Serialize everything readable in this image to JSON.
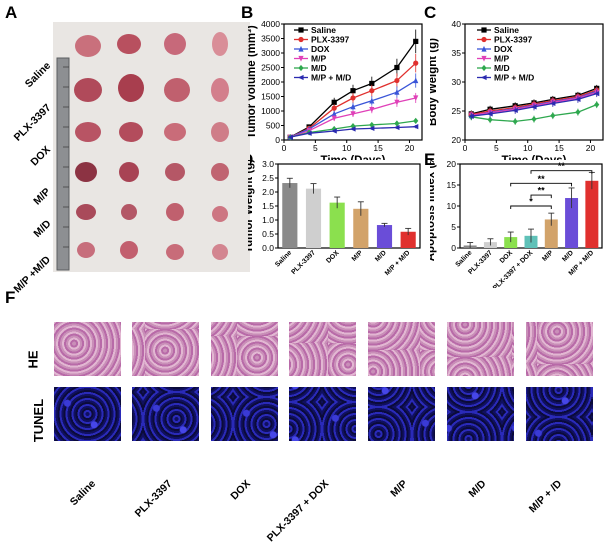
{
  "panels": {
    "A": "A",
    "B": "B",
    "C": "C",
    "D": "D",
    "E": "E",
    "F": "F"
  },
  "panelA": {
    "rows": [
      "Saline",
      "PLX-3397",
      "DOX",
      "M/P",
      "M/D",
      "M/P +M/D"
    ]
  },
  "panelF": {
    "rows": [
      "HE",
      "TUNEL"
    ],
    "columns": [
      "Saline",
      "PLX-3397",
      "DOX",
      "PLX-3397 + DOX",
      "M/P",
      "M/D",
      "M/P + /D"
    ]
  },
  "colors": {
    "Saline": "#000000",
    "PLX-3397": "#e0302e",
    "DOX": "#3a55d8",
    "M/P": "#e040b8",
    "M/D": "#2fa84f",
    "M/P + M/D": "#2b2bb0"
  },
  "chart_data": [
    {
      "id": "B",
      "type": "line",
      "title": "",
      "xlabel": "Time (Days)",
      "ylabel": "Tumor volume (mm³)",
      "xlim": [
        0,
        22
      ],
      "ylim": [
        0,
        4000
      ],
      "xticks": [
        0,
        5,
        10,
        15,
        20
      ],
      "yticks": [
        0,
        500,
        1000,
        1500,
        2000,
        2500,
        3000,
        3500,
        4000
      ],
      "x": [
        1,
        4,
        8,
        11,
        14,
        18,
        21
      ],
      "series": [
        {
          "name": "Saline",
          "color": "#000000",
          "marker": "square",
          "values": [
            100,
            450,
            1300,
            1700,
            1950,
            2500,
            3400
          ]
        },
        {
          "name": "PLX-3397",
          "color": "#e0302e",
          "marker": "circle",
          "values": [
            100,
            400,
            1100,
            1450,
            1700,
            2050,
            2650
          ]
        },
        {
          "name": "DOX",
          "color": "#3a55d8",
          "marker": "triangle",
          "values": [
            100,
            380,
            900,
            1150,
            1350,
            1650,
            2050
          ]
        },
        {
          "name": "M/P",
          "color": "#e040b8",
          "marker": "triangle-down",
          "values": [
            100,
            320,
            750,
            900,
            1050,
            1300,
            1450
          ]
        },
        {
          "name": "M/D",
          "color": "#2fa84f",
          "marker": "diamond",
          "values": [
            100,
            260,
            380,
            480,
            520,
            570,
            660
          ]
        },
        {
          "name": "M/P + M/D",
          "color": "#2b2bb0",
          "marker": "triangle-left",
          "values": [
            100,
            230,
            310,
            380,
            400,
            430,
            460
          ]
        }
      ]
    },
    {
      "id": "C",
      "type": "line",
      "title": "",
      "xlabel": "Time (Days)",
      "ylabel": "Body Weight (g)",
      "xlim": [
        0,
        22
      ],
      "ylim": [
        20,
        40
      ],
      "xticks": [
        0,
        5,
        10,
        15,
        20
      ],
      "yticks": [
        20,
        25,
        30,
        35,
        40
      ],
      "x": [
        1,
        4,
        8,
        11,
        14,
        18,
        21
      ],
      "series": [
        {
          "name": "Saline",
          "color": "#000000",
          "marker": "square",
          "values": [
            24.5,
            25.3,
            25.9,
            26.4,
            27.0,
            27.7,
            28.9
          ]
        },
        {
          "name": "PLX-3397",
          "color": "#e0302e",
          "marker": "circle",
          "values": [
            24.4,
            25.0,
            25.6,
            26.2,
            26.8,
            27.5,
            28.6
          ]
        },
        {
          "name": "DOX",
          "color": "#3a55d8",
          "marker": "triangle",
          "values": [
            24.2,
            24.8,
            25.4,
            26.0,
            26.6,
            27.3,
            28.4
          ]
        },
        {
          "name": "M/P",
          "color": "#e040b8",
          "marker": "triangle-down",
          "values": [
            24.3,
            24.7,
            25.3,
            25.9,
            26.5,
            27.2,
            28.2
          ]
        },
        {
          "name": "M/D",
          "color": "#2fa84f",
          "marker": "diamond",
          "values": [
            24.0,
            23.5,
            23.2,
            23.6,
            24.2,
            24.8,
            26.1
          ]
        },
        {
          "name": "M/P + M/D",
          "color": "#2b2bb0",
          "marker": "triangle-left",
          "values": [
            24.1,
            24.5,
            25.1,
            25.7,
            26.3,
            27.0,
            28.0
          ]
        }
      ]
    },
    {
      "id": "D",
      "type": "bar",
      "title": "",
      "xlabel": "",
      "ylabel": "Tumor Weight (g)",
      "ylim": [
        0,
        3.0
      ],
      "yticks": [
        0.0,
        0.5,
        1.0,
        1.5,
        2.0,
        2.5,
        3.0
      ],
      "categories": [
        "Saline",
        "PLX-3397",
        "DOX",
        "M/P",
        "M/D",
        "M/P + M/D"
      ],
      "values": [
        2.32,
        2.12,
        1.62,
        1.4,
        0.82,
        0.58
      ],
      "errors": [
        0.17,
        0.18,
        0.2,
        0.25,
        0.06,
        0.12
      ],
      "colors": [
        "#8a8a8a",
        "#cfcfcf",
        "#8be04e",
        "#d2a36a",
        "#6a4dd8",
        "#e0302e"
      ]
    },
    {
      "id": "E",
      "type": "bar",
      "title": "",
      "xlabel": "",
      "ylabel": "Apoptosis index (%)",
      "ylim": [
        0,
        20
      ],
      "yticks": [
        0,
        5,
        10,
        15,
        20
      ],
      "categories": [
        "Saline",
        "PLX-3397",
        "DOX",
        "PLX-3397 + DOX",
        "M/P",
        "M/D",
        "M/P + M/D"
      ],
      "values": [
        0.6,
        1.4,
        2.6,
        2.9,
        6.8,
        11.9,
        16.0
      ],
      "errors": [
        0.7,
        0.8,
        1.2,
        1.6,
        1.5,
        2.4,
        2.0
      ],
      "colors": [
        "#8a8a8a",
        "#cfcfcf",
        "#8be04e",
        "#5fc1b8",
        "#d2a36a",
        "#6a4dd8",
        "#e0302e"
      ],
      "significance": [
        {
          "from": "DOX",
          "to": "M/P",
          "label": "*"
        },
        {
          "from": "PLX-3397 + DOX",
          "to": "M/P",
          "label": "**"
        },
        {
          "from": "DOX",
          "to": "M/D",
          "label": "**"
        },
        {
          "from": "PLX-3397 + DOX",
          "to": "M/P + M/D",
          "label": "**"
        }
      ]
    }
  ]
}
